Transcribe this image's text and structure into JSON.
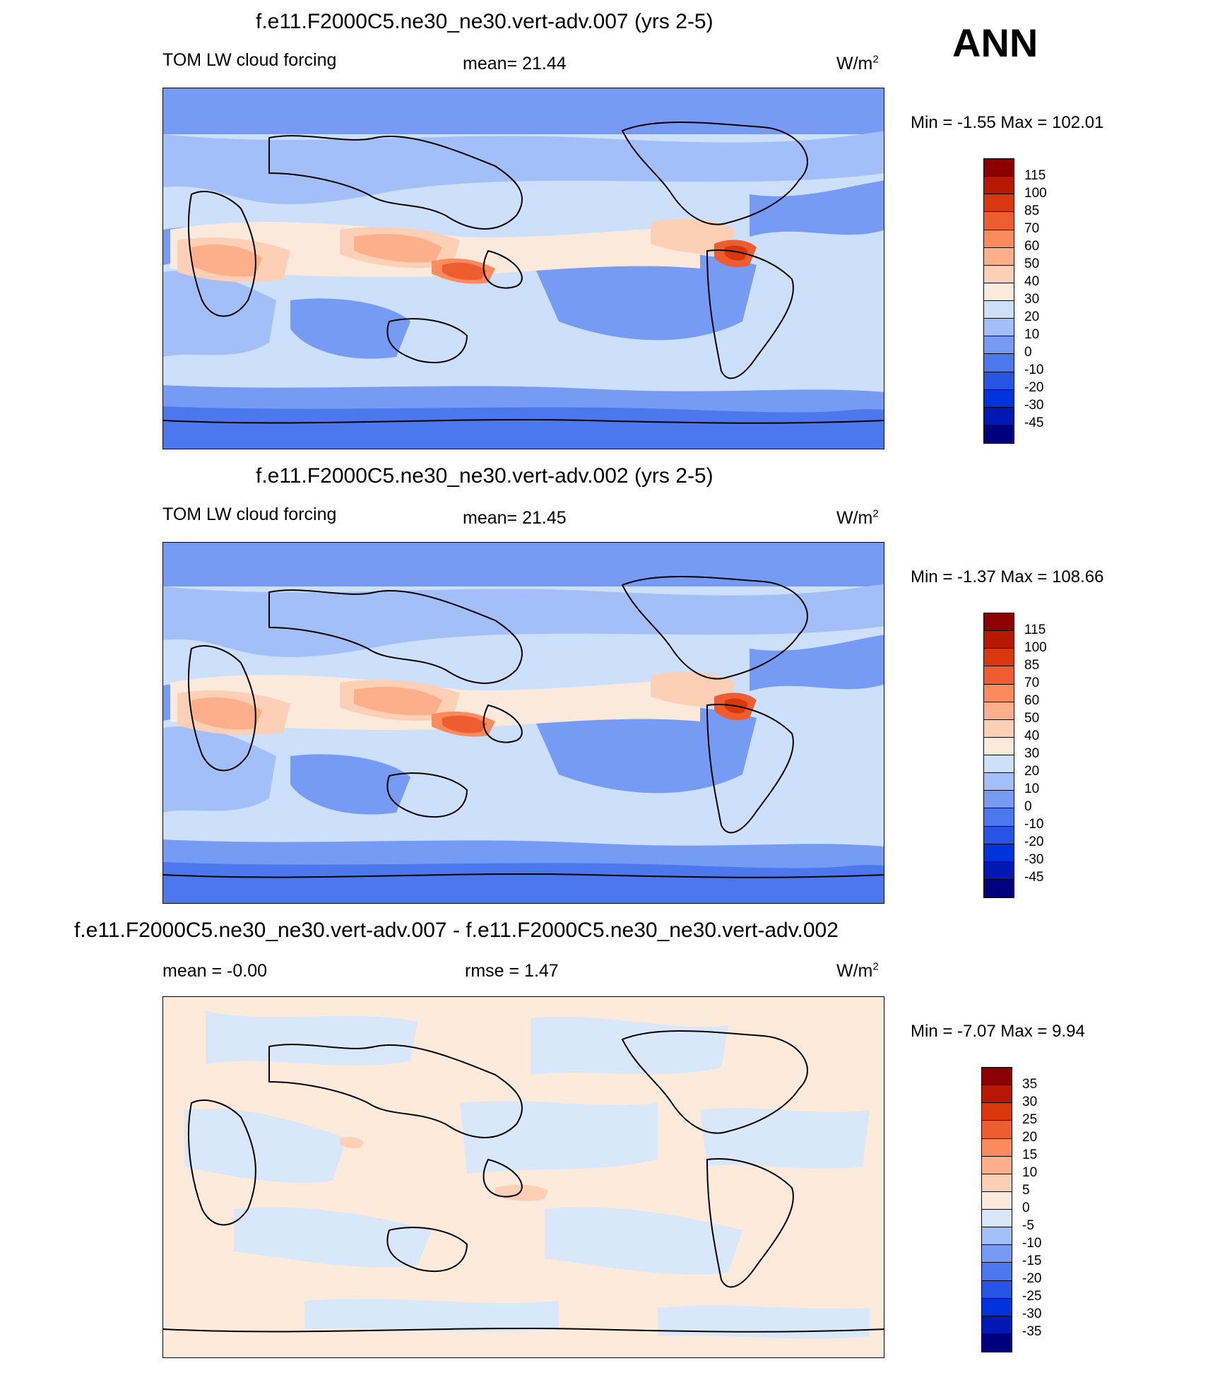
{
  "season": "ANN",
  "colors": {
    "fld": [
      "#00007e",
      "#0018b4",
      "#0033dc",
      "#2655e5",
      "#4c78ee",
      "#769bf5",
      "#a3bff9",
      "#cde0fb",
      "#fbeadb",
      "#fdcfb4",
      "#fdaf8a",
      "#fb8b5c",
      "#ed5d30",
      "#d9380f",
      "#b71804",
      "#8b0000"
    ],
    "diff": [
      "#00007e",
      "#0018b4",
      "#0033dc",
      "#2655e5",
      "#4c78ee",
      "#769bf5",
      "#a3bff9",
      "#d8e7fa",
      "#fdeadb",
      "#fdcfb4",
      "#fdaf8a",
      "#fb8b5c",
      "#ed5d30",
      "#d9380f",
      "#b71804",
      "#8b0000"
    ]
  },
  "panels": [
    {
      "title": "f.e11.F2000C5.ne30_ne30.vert-adv.007 (yrs 2-5)",
      "variable": "TOM LW cloud forcing",
      "stat1": "mean=  21.44",
      "stat2": "",
      "units_base": "W/m",
      "units_exp": "2",
      "minmax": "Min =  -1.55 Max = 102.01",
      "levels": [
        "115",
        "100",
        "85",
        "70",
        "60",
        "50",
        "40",
        "30",
        "20",
        "10",
        "0",
        "-10",
        "-20",
        "-30",
        "-45"
      ],
      "kind": "field"
    },
    {
      "title": "f.e11.F2000C5.ne30_ne30.vert-adv.002 (yrs 2-5)",
      "variable": "TOM LW cloud forcing",
      "stat1": "mean=  21.45",
      "stat2": "",
      "units_base": "W/m",
      "units_exp": "2",
      "minmax": "Min =  -1.37 Max = 108.66",
      "levels": [
        "115",
        "100",
        "85",
        "70",
        "60",
        "50",
        "40",
        "30",
        "20",
        "10",
        "0",
        "-10",
        "-20",
        "-30",
        "-45"
      ],
      "kind": "field"
    },
    {
      "title": "f.e11.F2000C5.ne30_ne30.vert-adv.007 - f.e11.F2000C5.ne30_ne30.vert-adv.002",
      "variable": "",
      "stat1": "mean =  -0.00",
      "stat2": "rmse =   1.47",
      "units_base": "W/m",
      "units_exp": "2",
      "minmax": "Min =  -7.07 Max =   9.94",
      "levels": [
        "35",
        "30",
        "25",
        "20",
        "15",
        "10",
        "5",
        "0",
        "-5",
        "-10",
        "-15",
        "-20",
        "-25",
        "-30",
        "-35"
      ],
      "kind": "diff"
    }
  ]
}
